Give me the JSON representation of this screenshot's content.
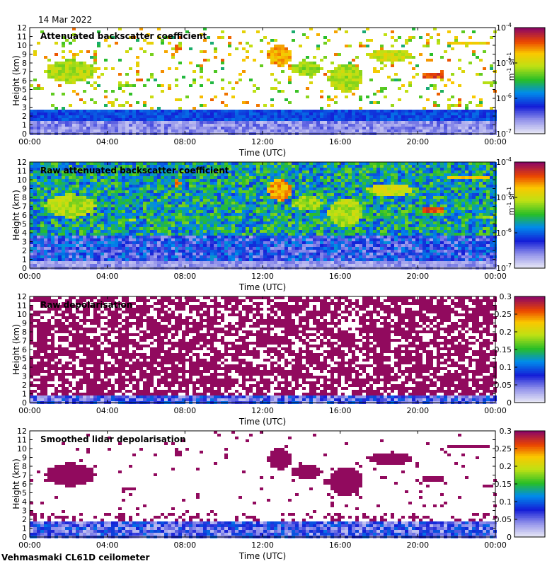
{
  "date": "14 Mar 2022",
  "footer": "Vehmasmaki CL61D ceilometer",
  "chart_data": [
    {
      "type": "heatmap",
      "title": "Attenuated backscatter coefficient",
      "xlabel": "Time (UTC)",
      "ylabel": "Height (km)",
      "x_ticks": [
        "00:00",
        "04:00",
        "08:00",
        "12:00",
        "16:00",
        "20:00",
        "00:00"
      ],
      "y_ticks": [
        "0",
        "1",
        "2",
        "3",
        "4",
        "5",
        "6",
        "7",
        "8",
        "9",
        "10",
        "11",
        "12"
      ],
      "ylim": [
        0,
        12
      ],
      "colorbar": {
        "scale": "log",
        "range": [
          1e-07,
          0.0001
        ],
        "ticks": [
          "10-7",
          "10-6",
          "10-5",
          "10-4"
        ],
        "unit": "m-1 sr-1"
      }
    },
    {
      "type": "heatmap",
      "title": "Raw attenuated backscatter coefficient",
      "xlabel": "Time (UTC)",
      "ylabel": "Height (km)",
      "x_ticks": [
        "00:00",
        "04:00",
        "08:00",
        "12:00",
        "16:00",
        "20:00",
        "00:00"
      ],
      "y_ticks": [
        "0",
        "1",
        "2",
        "3",
        "4",
        "5",
        "6",
        "7",
        "8",
        "9",
        "10",
        "11",
        "12"
      ],
      "ylim": [
        0,
        12
      ],
      "colorbar": {
        "scale": "log",
        "range": [
          1e-07,
          0.0001
        ],
        "ticks": [
          "10-7",
          "10-6",
          "10-5",
          "10-4"
        ],
        "unit": "m-1 sr-1"
      }
    },
    {
      "type": "heatmap",
      "title": "Raw depolarisation",
      "xlabel": "Time (UTC)",
      "ylabel": "Height (km)",
      "x_ticks": [
        "00:00",
        "04:00",
        "08:00",
        "12:00",
        "16:00",
        "20:00",
        "00:00"
      ],
      "y_ticks": [
        "0",
        "1",
        "2",
        "3",
        "4",
        "5",
        "6",
        "7",
        "8",
        "9",
        "10",
        "11",
        "12"
      ],
      "ylim": [
        0,
        12
      ],
      "colorbar": {
        "scale": "linear",
        "range": [
          0,
          0.3
        ],
        "ticks": [
          "0",
          "0.05",
          "0.1",
          "0.15",
          "0.2",
          "0.25",
          "0.3"
        ],
        "unit": ""
      }
    },
    {
      "type": "heatmap",
      "title": "Smoothed lidar depolarisation",
      "xlabel": "Time (UTC)",
      "ylabel": "Height (km)",
      "x_ticks": [
        "00:00",
        "04:00",
        "08:00",
        "12:00",
        "16:00",
        "20:00",
        "00:00"
      ],
      "y_ticks": [
        "0",
        "1",
        "2",
        "3",
        "4",
        "5",
        "6",
        "7",
        "8",
        "9",
        "10",
        "11",
        "12"
      ],
      "ylim": [
        0,
        12
      ],
      "colorbar": {
        "scale": "linear",
        "range": [
          0,
          0.3
        ],
        "ticks": [
          "0",
          "0.05",
          "0.1",
          "0.15",
          "0.2",
          "0.25",
          "0.3"
        ],
        "unit": ""
      }
    }
  ]
}
